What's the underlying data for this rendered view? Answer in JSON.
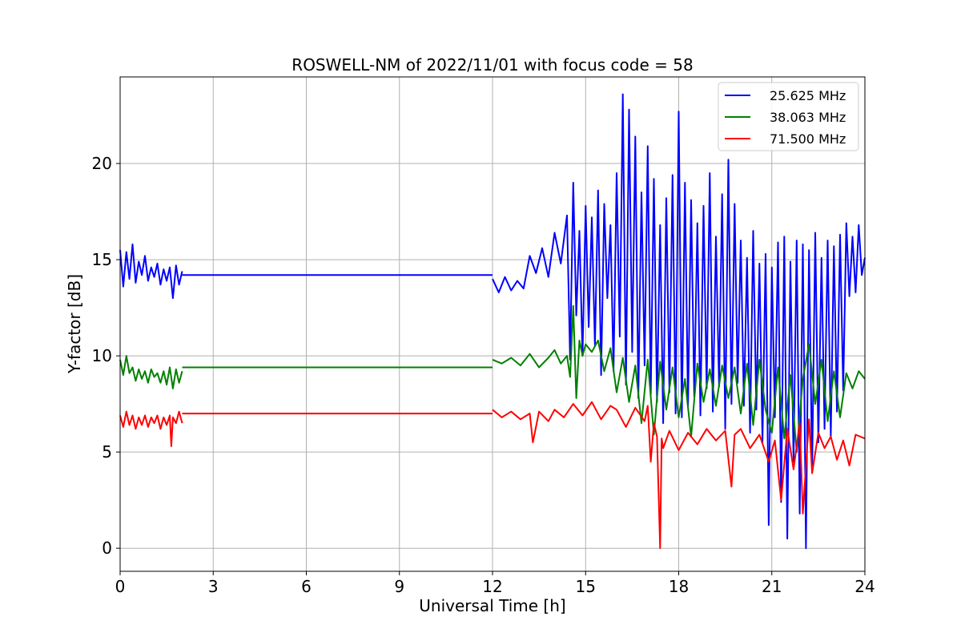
{
  "chart_data": {
    "type": "line",
    "title": "ROSWELL-NM of 2022/11/01 with focus code = 58",
    "xlabel": "Universal Time [h]",
    "ylabel": "Y-factor [dB]",
    "xlim": [
      0,
      24
    ],
    "ylim": [
      -1.2,
      24.5
    ],
    "xticks": [
      0,
      3,
      6,
      9,
      12,
      15,
      18,
      21,
      24
    ],
    "yticks": [
      0,
      5,
      10,
      15,
      20
    ],
    "grid": true,
    "legend_position": "top-right",
    "series": [
      {
        "name": "25.625 MHz",
        "color": "#0000ff",
        "segments": [
          {
            "x": [
              0.0,
              0.1,
              0.2,
              0.3,
              0.4,
              0.5,
              0.6,
              0.7,
              0.8,
              0.9,
              1.0,
              1.1,
              1.2,
              1.3,
              1.4,
              1.5,
              1.6,
              1.7,
              1.8,
              1.9,
              2.0
            ],
            "y": [
              15.5,
              13.6,
              15.4,
              14.0,
              15.8,
              13.8,
              14.9,
              14.2,
              15.2,
              13.9,
              14.6,
              14.1,
              14.8,
              13.7,
              14.5,
              13.9,
              14.6,
              13.0,
              14.7,
              13.7,
              14.4
            ]
          },
          {
            "x": [
              2.0,
              12.0
            ],
            "y": [
              14.2,
              14.2
            ]
          },
          {
            "x": [
              12.0,
              12.2,
              12.4,
              12.6,
              12.8,
              13.0,
              13.2,
              13.4,
              13.6,
              13.8,
              14.0,
              14.2,
              14.4,
              14.5,
              14.6,
              14.7,
              14.8,
              14.9,
              15.0,
              15.1,
              15.2,
              15.3,
              15.4,
              15.5,
              15.6,
              15.7,
              15.8,
              15.9,
              16.0,
              16.1,
              16.2,
              16.3,
              16.4,
              16.5,
              16.6,
              16.7,
              16.8,
              16.9,
              17.0,
              17.1,
              17.2,
              17.3,
              17.4,
              17.5,
              17.6,
              17.7,
              17.8,
              17.9,
              18.0,
              18.1,
              18.2,
              18.3,
              18.4,
              18.5,
              18.6,
              18.7,
              18.8,
              18.9,
              19.0,
              19.1,
              19.2,
              19.3,
              19.4,
              19.5,
              19.6,
              19.7,
              19.8,
              19.9,
              20.0,
              20.1,
              20.2,
              20.3,
              20.4,
              20.5,
              20.6,
              20.7,
              20.8,
              20.9,
              21.0,
              21.1,
              21.2,
              21.3,
              21.4,
              21.5,
              21.6,
              21.7,
              21.8,
              21.9,
              22.0,
              22.1,
              22.2,
              22.3,
              22.4,
              22.5,
              22.6,
              22.7,
              22.8,
              22.9,
              23.0,
              23.1,
              23.2,
              23.3,
              23.4,
              23.5,
              23.6,
              23.7,
              23.8,
              23.9,
              24.0
            ],
            "y": [
              14.0,
              13.3,
              14.1,
              13.4,
              13.9,
              13.5,
              15.2,
              14.3,
              15.6,
              14.1,
              16.4,
              14.8,
              17.3,
              9.8,
              19.0,
              12.1,
              16.5,
              10.0,
              17.8,
              11.5,
              17.2,
              10.5,
              18.6,
              9.0,
              17.9,
              13.0,
              16.8,
              9.2,
              19.5,
              11.0,
              23.6,
              8.5,
              22.8,
              10.2,
              21.4,
              7.8,
              18.5,
              9.5,
              20.9,
              8.0,
              19.2,
              7.6,
              16.8,
              6.5,
              18.2,
              8.1,
              19.4,
              7.0,
              22.7,
              6.8,
              19.0,
              7.4,
              18.1,
              7.9,
              16.9,
              6.9,
              17.8,
              8.3,
              19.5,
              7.1,
              16.2,
              8.4,
              18.4,
              6.2,
              20.2,
              7.5,
              17.9,
              8.6,
              16.0,
              7.4,
              15.1,
              6.0,
              16.5,
              7.2,
              14.8,
              5.5,
              15.3,
              1.2,
              14.6,
              6.8,
              15.9,
              2.4,
              16.2,
              0.5,
              14.9,
              4.5,
              16.0,
              1.8,
              15.8,
              0.0,
              15.5,
              4.0,
              16.4,
              5.5,
              15.1,
              6.2,
              16.0,
              5.8,
              15.7,
              7.1,
              16.3,
              8.2,
              16.9,
              13.1,
              16.2,
              13.3,
              16.8,
              14.2,
              15.1
            ]
          }
        ]
      },
      {
        "name": "38.063 MHz",
        "color": "#008000",
        "segments": [
          {
            "x": [
              0.0,
              0.1,
              0.2,
              0.3,
              0.4,
              0.5,
              0.6,
              0.7,
              0.8,
              0.9,
              1.0,
              1.1,
              1.2,
              1.3,
              1.4,
              1.5,
              1.6,
              1.7,
              1.8,
              1.9,
              2.0
            ],
            "y": [
              9.8,
              9.0,
              10.0,
              9.1,
              9.4,
              8.7,
              9.3,
              8.8,
              9.2,
              8.6,
              9.3,
              8.9,
              9.1,
              8.6,
              9.2,
              8.5,
              9.4,
              8.3,
              9.3,
              8.6,
              9.2
            ]
          },
          {
            "x": [
              2.0,
              12.0
            ],
            "y": [
              9.4,
              9.4
            ]
          },
          {
            "x": [
              12.0,
              12.3,
              12.6,
              12.9,
              13.2,
              13.5,
              13.8,
              14.0,
              14.2,
              14.4,
              14.5,
              14.6,
              14.7,
              14.8,
              14.9,
              15.0,
              15.2,
              15.4,
              15.6,
              15.8,
              16.0,
              16.2,
              16.4,
              16.6,
              16.8,
              17.0,
              17.2,
              17.4,
              17.6,
              17.8,
              18.0,
              18.2,
              18.4,
              18.6,
              18.8,
              19.0,
              19.2,
              19.4,
              19.6,
              19.8,
              20.0,
              20.2,
              20.4,
              20.6,
              20.8,
              21.0,
              21.2,
              21.4,
              21.6,
              21.8,
              22.0,
              22.2,
              22.4,
              22.6,
              22.8,
              23.0,
              23.2,
              23.4,
              23.6,
              23.8,
              24.0
            ],
            "y": [
              9.8,
              9.6,
              9.9,
              9.5,
              10.1,
              9.4,
              9.9,
              10.3,
              9.6,
              10.0,
              8.9,
              12.6,
              7.8,
              10.8,
              10.0,
              10.6,
              10.2,
              10.8,
              9.2,
              10.4,
              8.1,
              9.9,
              7.6,
              9.5,
              6.5,
              9.8,
              5.9,
              9.7,
              7.2,
              9.4,
              6.8,
              8.8,
              5.8,
              9.6,
              7.6,
              9.3,
              7.4,
              9.5,
              7.8,
              9.4,
              7.0,
              9.6,
              6.4,
              9.8,
              7.2,
              6.0,
              9.4,
              5.7,
              9.0,
              5.0,
              8.8,
              10.6,
              7.5,
              9.8,
              6.6,
              9.2,
              6.8,
              9.1,
              8.3,
              9.2,
              8.8
            ]
          }
        ]
      },
      {
        "name": "71.500 MHz",
        "color": "#ff0000",
        "segments": [
          {
            "x": [
              0.0,
              0.1,
              0.2,
              0.3,
              0.4,
              0.5,
              0.6,
              0.7,
              0.8,
              0.9,
              1.0,
              1.1,
              1.2,
              1.3,
              1.4,
              1.5,
              1.6,
              1.65,
              1.7,
              1.8,
              1.9,
              2.0
            ],
            "y": [
              6.9,
              6.3,
              7.1,
              6.4,
              6.9,
              6.2,
              6.8,
              6.4,
              6.9,
              6.3,
              6.8,
              6.5,
              6.9,
              6.2,
              6.8,
              6.4,
              6.9,
              5.3,
              6.8,
              6.5,
              7.1,
              6.5
            ]
          },
          {
            "x": [
              2.0,
              12.0
            ],
            "y": [
              7.0,
              7.0
            ]
          },
          {
            "x": [
              12.0,
              12.3,
              12.6,
              12.9,
              13.2,
              13.3,
              13.5,
              13.8,
              14.0,
              14.3,
              14.6,
              14.9,
              15.2,
              15.5,
              15.8,
              16.0,
              16.3,
              16.6,
              16.9,
              17.0,
              17.1,
              17.2,
              17.3,
              17.4,
              17.45,
              17.5,
              17.7,
              18.0,
              18.3,
              18.6,
              18.9,
              19.2,
              19.5,
              19.7,
              19.8,
              20.0,
              20.3,
              20.6,
              20.9,
              21.1,
              21.3,
              21.5,
              21.7,
              21.9,
              22.0,
              22.2,
              22.3,
              22.5,
              22.7,
              22.9,
              23.1,
              23.3,
              23.5,
              23.7,
              24.0
            ],
            "y": [
              7.2,
              6.8,
              7.1,
              6.7,
              7.0,
              5.5,
              7.1,
              6.6,
              7.2,
              6.8,
              7.5,
              6.9,
              7.6,
              6.7,
              7.4,
              7.2,
              6.3,
              7.3,
              6.6,
              7.4,
              4.5,
              6.5,
              5.8,
              0.0,
              5.7,
              5.2,
              6.1,
              5.1,
              6.0,
              5.4,
              6.2,
              5.6,
              6.1,
              3.2,
              5.9,
              6.2,
              5.2,
              5.9,
              4.5,
              5.6,
              2.5,
              6.2,
              4.1,
              6.5,
              1.8,
              6.7,
              3.9,
              6.0,
              5.2,
              5.8,
              4.6,
              5.6,
              4.3,
              5.9,
              5.7
            ]
          }
        ]
      }
    ]
  }
}
